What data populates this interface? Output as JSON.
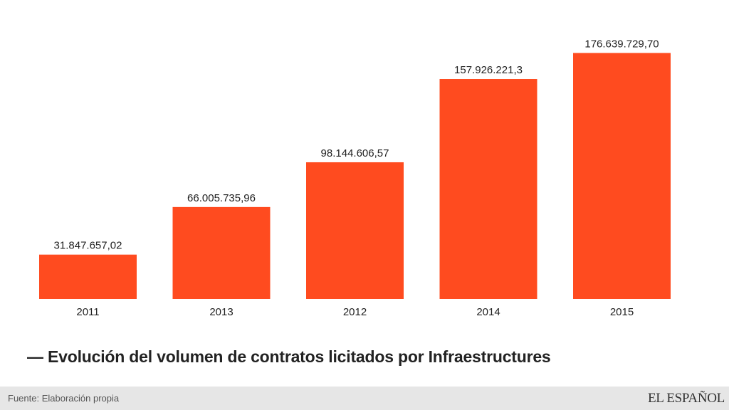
{
  "chart_data": {
    "type": "bar",
    "categories": [
      "2011",
      "2013",
      "2012",
      "2014",
      "2015"
    ],
    "values": [
      31847657.02,
      66005735.96,
      98144606.57,
      157926221.3,
      176639729.7
    ],
    "value_labels": [
      "31.847.657,02",
      "66.005.735,96",
      "98.144.606,57",
      "157.926.221,3",
      "176.639.729,70"
    ],
    "title": "— Evolución del volumen de contratos licitados por Infraestructures",
    "xlabel": "",
    "ylabel": "",
    "ylim": [
      0,
      184000000
    ],
    "grid": false,
    "bar_color": "#ff4b1f"
  },
  "footer": {
    "source": "Fuente: Elaboración propia",
    "logo_text": "EL ESPAÑOL"
  }
}
